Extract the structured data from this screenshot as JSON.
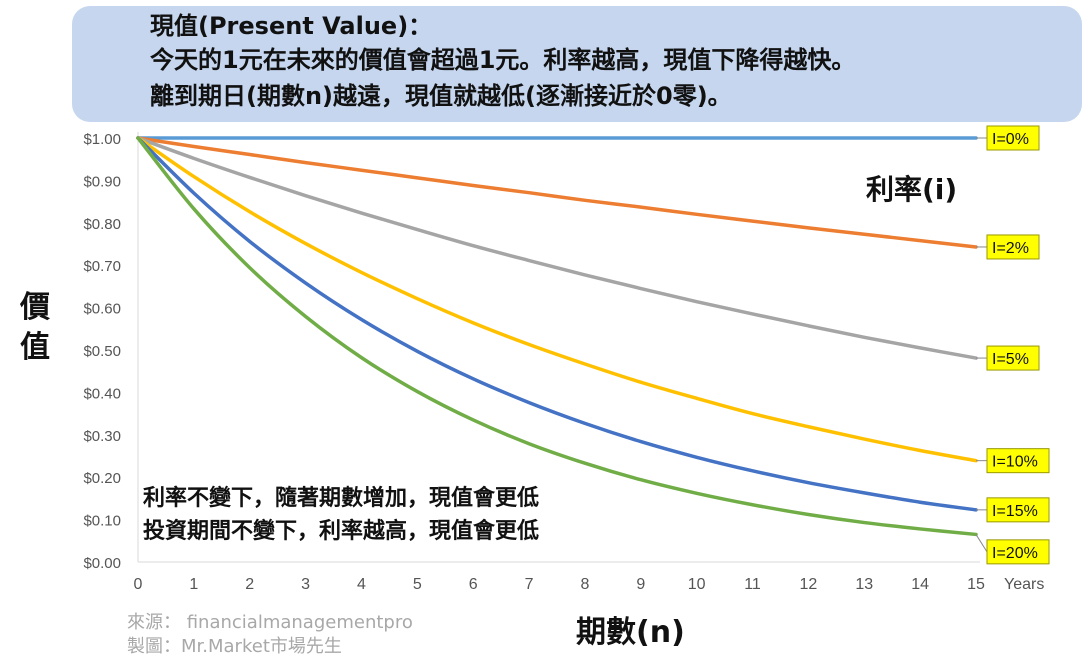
{
  "header": {
    "line1": "現值(Present Value)：",
    "line2": "今天的1元在未來的價值會超過1元。利率越高，現值下降得越快。",
    "line3": "離到期日(期數n)越遠，現值就越低(逐漸接近於0零)。"
  },
  "notes": {
    "line1": "利率不變下，隨著期數增加，現值會更低",
    "line2": "投資期間不變下，利率越高，現值會更低"
  },
  "credits": {
    "source": "來源：  financialmanagementpro",
    "maker": "製圖：Mr.Market市場先生"
  },
  "chart_data": {
    "type": "line",
    "ylabel_chars": [
      "價",
      "值"
    ],
    "xlabel": "期數(n)",
    "x_unit_label": "Years",
    "series_title": "利率(i)",
    "x": [
      0,
      1,
      2,
      3,
      4,
      5,
      6,
      7,
      8,
      9,
      10,
      11,
      12,
      13,
      14,
      15
    ],
    "x_tick_labels": [
      "0",
      "1",
      "2",
      "3",
      "4",
      "5",
      "6",
      "7",
      "8",
      "9",
      "10",
      "11",
      "12",
      "13",
      "14",
      "15"
    ],
    "y_tick_values": [
      0,
      0.1,
      0.2,
      0.3,
      0.4,
      0.5,
      0.6,
      0.7,
      0.8,
      0.9,
      1.0
    ],
    "y_tick_labels": [
      "$0.00",
      "$0.10",
      "$0.20",
      "$0.30",
      "$0.40",
      "$0.50",
      "$0.60",
      "$0.70",
      "$0.80",
      "$0.90",
      "$1.00"
    ],
    "ylim": [
      0,
      1
    ],
    "xlim": [
      0,
      15
    ],
    "grid": false,
    "series": [
      {
        "name": "I=0%",
        "color": "#5b9bd5",
        "values": [
          1.0,
          1.0,
          1.0,
          1.0,
          1.0,
          1.0,
          1.0,
          1.0,
          1.0,
          1.0,
          1.0,
          1.0,
          1.0,
          1.0,
          1.0,
          1.0
        ]
      },
      {
        "name": "I=2%",
        "color": "#ed7d31",
        "values": [
          1.0,
          0.98,
          0.961,
          0.942,
          0.924,
          0.906,
          0.888,
          0.871,
          0.853,
          0.837,
          0.82,
          0.804,
          0.788,
          0.773,
          0.758,
          0.743
        ]
      },
      {
        "name": "I=5%",
        "color": "#a5a5a5",
        "values": [
          1.0,
          0.952,
          0.907,
          0.864,
          0.823,
          0.784,
          0.746,
          0.711,
          0.677,
          0.645,
          0.614,
          0.585,
          0.557,
          0.53,
          0.505,
          0.481
        ]
      },
      {
        "name": "I=10%",
        "color": "#ffc000",
        "values": [
          1.0,
          0.909,
          0.826,
          0.751,
          0.683,
          0.621,
          0.564,
          0.513,
          0.467,
          0.424,
          0.386,
          0.35,
          0.319,
          0.29,
          0.263,
          0.239
        ]
      },
      {
        "name": "I=15%",
        "color": "#4472c4",
        "values": [
          1.0,
          0.87,
          0.756,
          0.658,
          0.572,
          0.497,
          0.432,
          0.376,
          0.327,
          0.284,
          0.247,
          0.215,
          0.187,
          0.163,
          0.141,
          0.123
        ]
      },
      {
        "name": "I=20%",
        "color": "#70ad47",
        "values": [
          1.0,
          0.833,
          0.694,
          0.579,
          0.482,
          0.402,
          0.335,
          0.279,
          0.233,
          0.194,
          0.162,
          0.135,
          0.112,
          0.093,
          0.078,
          0.065
        ]
      }
    ],
    "label_box_fill": "#ffff00",
    "label_box_stroke": "#999900"
  }
}
